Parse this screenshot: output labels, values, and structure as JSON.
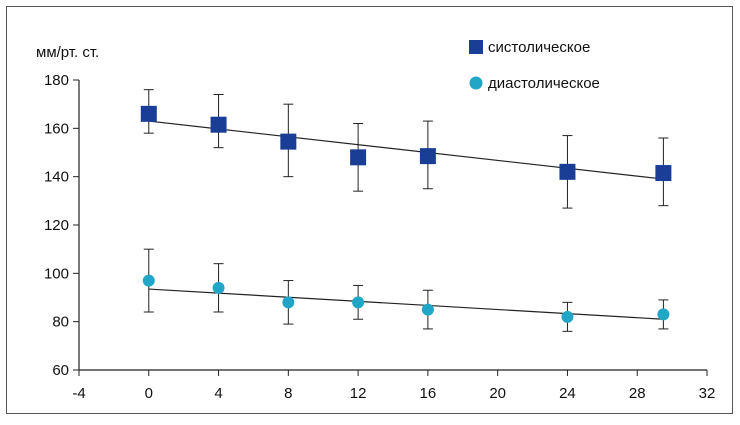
{
  "chart_data": {
    "type": "scatter",
    "ylabel": "мм/рт. ст.",
    "xlim": [
      -4,
      32
    ],
    "ylim": [
      60,
      180
    ],
    "x_ticks": [
      "-4",
      "0",
      "4",
      "8",
      "12",
      "16",
      "20",
      "24",
      "28",
      "32"
    ],
    "y_ticks": [
      "60",
      "80",
      "100",
      "120",
      "140",
      "160",
      "180"
    ],
    "grid": false,
    "legend_position": "top-right",
    "series": [
      {
        "name": "систолическое",
        "marker": "square",
        "color": "#1a3e96",
        "x": [
          0,
          4,
          8,
          12,
          16,
          24,
          29.5
        ],
        "y": [
          166,
          161.5,
          154.5,
          148,
          148.5,
          142,
          141.5
        ],
        "err_low": [
          158,
          152,
          140,
          134,
          135,
          127,
          128
        ],
        "err_high": [
          176,
          174,
          170,
          162,
          163,
          157,
          156
        ],
        "trend": {
          "x": [
            0,
            29.5
          ],
          "y": [
            163,
            139
          ]
        }
      },
      {
        "name": "диастолическое",
        "marker": "circle",
        "color": "#21a6c8",
        "x": [
          0,
          4,
          8,
          12,
          16,
          24,
          29.5
        ],
        "y": [
          97,
          94,
          88,
          88,
          85,
          82,
          83
        ],
        "err_low": [
          84,
          84,
          79,
          81,
          77,
          76,
          77
        ],
        "err_high": [
          110,
          104,
          97,
          95,
          93,
          88,
          89
        ],
        "trend": {
          "x": [
            0,
            29.5
          ],
          "y": [
            93.5,
            81
          ]
        }
      }
    ]
  }
}
